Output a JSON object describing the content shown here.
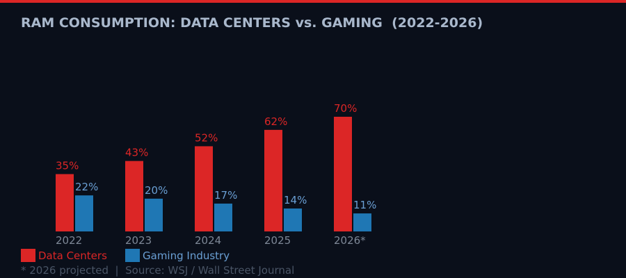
{
  "title": "RAM CONSUMPTION: DATA CENTERS vs. GAMING  (2022-2026)",
  "footnote": "* 2026 projected  |  Source: WSJ / Wall Street Journal",
  "colors": {
    "accent_bar": "#dc2626",
    "background": "#0a0f1a"
  },
  "chart_data": {
    "type": "bar",
    "title": "RAM CONSUMPTION: DATA CENTERS vs. GAMING  (2022-2026)",
    "categories": [
      "2022",
      "2023",
      "2024",
      "2025",
      "2026*"
    ],
    "series": [
      {
        "name": "Data Centers",
        "values": [
          35,
          43,
          52,
          62,
          70
        ],
        "color": "#dc2626",
        "label_color": "#dc2626"
      },
      {
        "name": "Gaming Industry",
        "values": [
          22,
          20,
          17,
          14,
          11
        ],
        "color": "#1f77b4",
        "label_color": "#6a9fd4"
      }
    ],
    "value_suffix": "%",
    "ylim": [
      0,
      70
    ],
    "grid": false,
    "legend": "bottom-left"
  }
}
